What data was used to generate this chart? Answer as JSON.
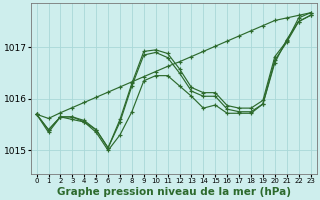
{
  "title": "Graphe pression niveau de la mer (hPa)",
  "bg_color": "#ceeeed",
  "line_color": "#2d6a2d",
  "grid_color": "#aad8d8",
  "xlim": [
    -0.5,
    23.5
  ],
  "ylim": [
    1014.55,
    1017.85
  ],
  "yticks": [
    1015,
    1016,
    1017
  ],
  "xticks": [
    0,
    1,
    2,
    3,
    4,
    5,
    6,
    7,
    8,
    9,
    10,
    11,
    12,
    13,
    14,
    15,
    16,
    17,
    18,
    19,
    20,
    21,
    22,
    23
  ],
  "series": [
    [
      1015.7,
      1015.4,
      1015.65,
      1015.65,
      1015.55,
      1015.4,
      1015.05,
      1015.55,
      1016.25,
      1016.85,
      1016.9,
      1016.8,
      1016.5,
      1016.15,
      1016.05,
      1016.05,
      1015.8,
      1015.75,
      1015.75,
      1015.9,
      1016.75,
      1017.1,
      1017.5,
      1017.62
    ],
    [
      1015.7,
      1015.35,
      1015.65,
      1015.6,
      1015.55,
      1015.35,
      1015.0,
      1015.3,
      1015.75,
      1016.35,
      1016.45,
      1016.45,
      1016.25,
      1016.05,
      1015.82,
      1015.88,
      1015.72,
      1015.72,
      1015.72,
      1015.9,
      1016.7,
      1017.15,
      1017.5,
      1017.62
    ],
    [
      1015.7,
      1015.4,
      1015.65,
      1015.65,
      1015.58,
      1015.4,
      1015.05,
      1015.6,
      1016.3,
      1016.92,
      1016.95,
      1016.88,
      1016.58,
      1016.22,
      1016.12,
      1016.12,
      1015.87,
      1015.82,
      1015.82,
      1015.97,
      1016.82,
      1017.12,
      1017.57,
      1017.67
    ],
    [
      1015.7,
      1015.62,
      1015.73,
      1015.83,
      1015.93,
      1016.03,
      1016.13,
      1016.23,
      1016.33,
      1016.43,
      1016.53,
      1016.63,
      1016.72,
      1016.82,
      1016.92,
      1017.02,
      1017.12,
      1017.22,
      1017.32,
      1017.42,
      1017.52,
      1017.57,
      1017.62,
      1017.67
    ]
  ],
  "xlabel_fontsize": 7.5,
  "ylabel_fontsize": 6.5,
  "title_fontsize": 7.5
}
